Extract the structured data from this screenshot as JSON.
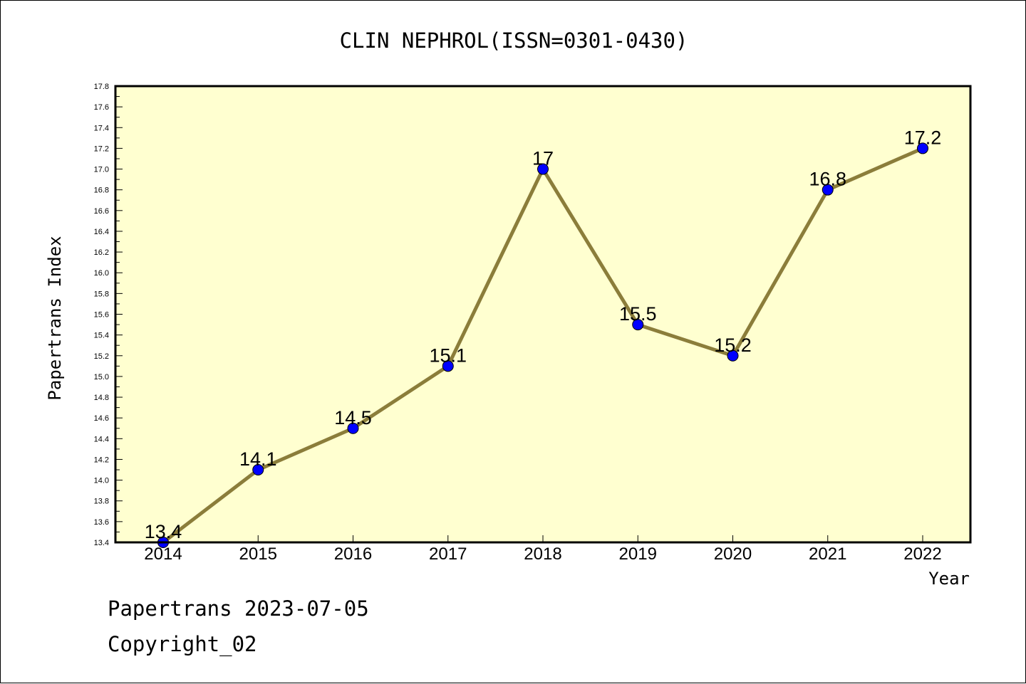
{
  "chart_data": {
    "type": "line",
    "title": "CLIN NEPHROL(ISSN=0301-0430)",
    "xlabel": "Year",
    "ylabel": "Papertrans Index",
    "x": [
      "2014",
      "2015",
      "2016",
      "2017",
      "2018",
      "2019",
      "2020",
      "2021",
      "2022"
    ],
    "series": [
      {
        "values": [
          13.4,
          14.1,
          14.5,
          15.1,
          17,
          15.5,
          15.2,
          16.8,
          17.2
        ],
        "labels": [
          "13.4",
          "14.1",
          "14.5",
          "15.1",
          "17",
          "15.5",
          "15.2",
          "16.8",
          "17.2"
        ]
      }
    ],
    "ylim": [
      13.4,
      17.8
    ],
    "yticks": [
      "13.4",
      "13.6",
      "13.8",
      "14.0",
      "14.2",
      "14.4",
      "14.6",
      "14.8",
      "15.0",
      "15.2",
      "15.4",
      "15.6",
      "15.8",
      "16.0",
      "16.2",
      "16.4",
      "16.6",
      "16.8",
      "17.0",
      "17.2",
      "17.4",
      "17.6",
      "17.8"
    ],
    "grid": false,
    "legend": "none",
    "colors": {
      "plot_background": "#ffffd0",
      "line": "#8b7d3a",
      "marker": "#0000ff"
    }
  },
  "footer": {
    "line1": "Papertrans 2023-07-05",
    "line2": "Copyright_02"
  }
}
